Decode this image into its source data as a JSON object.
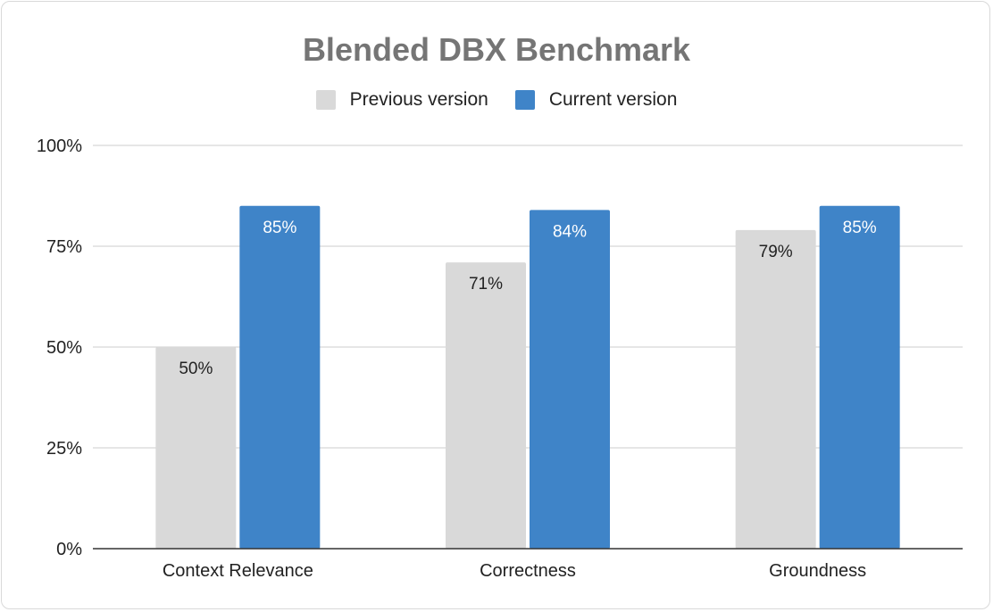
{
  "chart_data": {
    "type": "bar",
    "title": "Blended DBX Benchmark",
    "categories": [
      "Context Relevance",
      "Correctness",
      "Groundness"
    ],
    "series": [
      {
        "name": "Previous version",
        "values": [
          50,
          71,
          79
        ],
        "labels": [
          "50%",
          "71%",
          "79%"
        ],
        "color": "#d9d9d9",
        "label_color": "#222222"
      },
      {
        "name": "Current version",
        "values": [
          85,
          84,
          85
        ],
        "labels": [
          "85%",
          "84%",
          "85%"
        ],
        "color": "#3f84c8",
        "label_color": "#ffffff"
      }
    ],
    "ylim": [
      0,
      100
    ],
    "yticks": [
      0,
      25,
      50,
      75,
      100
    ],
    "ytick_labels": [
      "0%",
      "25%",
      "50%",
      "75%",
      "100%"
    ],
    "grid": true,
    "legend_position": "top-center"
  }
}
